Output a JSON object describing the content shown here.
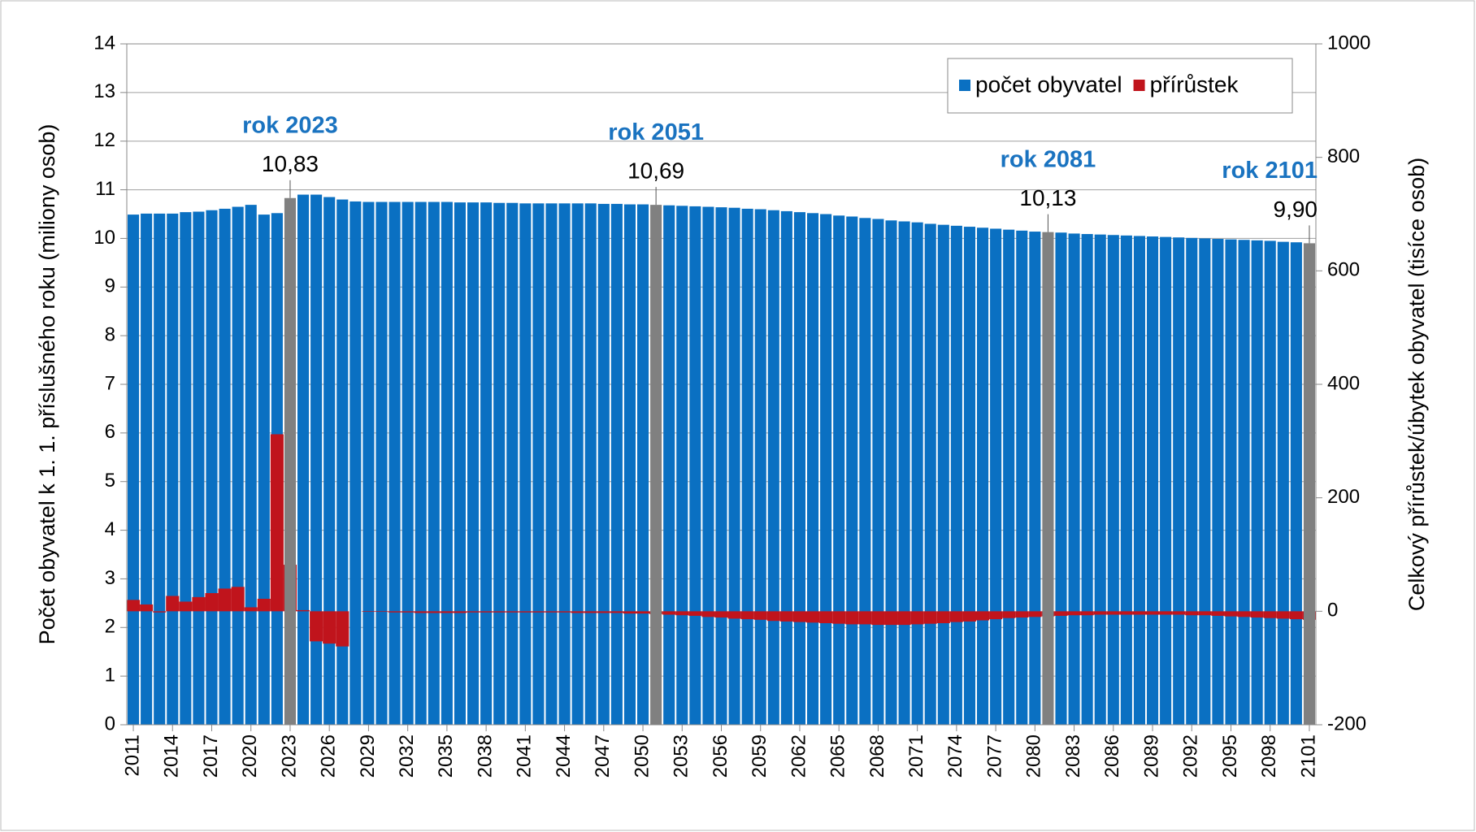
{
  "chart_data": {
    "type": "bar",
    "y_label": "Počet obyvatel k 1. 1. příslušného roku (miliony osob)",
    "y2_label": "Celkový přírůstek/úbytek obyvatel (tisíce osob)",
    "x": [
      2011,
      2012,
      2013,
      2014,
      2015,
      2016,
      2017,
      2018,
      2019,
      2020,
      2021,
      2022,
      2023,
      2024,
      2025,
      2026,
      2027,
      2028,
      2029,
      2030,
      2031,
      2032,
      2033,
      2034,
      2035,
      2036,
      2037,
      2038,
      2039,
      2040,
      2041,
      2042,
      2043,
      2044,
      2045,
      2046,
      2047,
      2048,
      2049,
      2050,
      2051,
      2052,
      2053,
      2054,
      2055,
      2056,
      2057,
      2058,
      2059,
      2060,
      2061,
      2062,
      2063,
      2064,
      2065,
      2066,
      2067,
      2068,
      2069,
      2070,
      2071,
      2072,
      2073,
      2074,
      2075,
      2076,
      2077,
      2078,
      2079,
      2080,
      2081,
      2082,
      2083,
      2084,
      2085,
      2086,
      2087,
      2088,
      2089,
      2090,
      2091,
      2092,
      2093,
      2094,
      2095,
      2096,
      2097,
      2098,
      2099,
      2100,
      2101
    ],
    "xlim": [
      2010.5,
      2101.5
    ],
    "xticks": [
      2011,
      2014,
      2017,
      2020,
      2023,
      2026,
      2029,
      2032,
      2035,
      2038,
      2041,
      2044,
      2047,
      2050,
      2053,
      2056,
      2059,
      2062,
      2065,
      2068,
      2071,
      2074,
      2077,
      2080,
      2083,
      2086,
      2089,
      2092,
      2095,
      2098,
      2101
    ],
    "ylim": [
      0,
      14
    ],
    "yticks": [
      0,
      1,
      2,
      3,
      4,
      5,
      6,
      7,
      8,
      9,
      10,
      11,
      12,
      13,
      14
    ],
    "y2lim": [
      -200,
      1000
    ],
    "y2ticks": [
      -200,
      0,
      200,
      400,
      600,
      800,
      1000
    ],
    "grid": true,
    "legend": "top-right",
    "highlight_color": "#808080",
    "series": [
      {
        "name": "počet obyvatel",
        "color": "#0a70c2",
        "values": [
          10.49,
          10.51,
          10.51,
          10.51,
          10.54,
          10.55,
          10.58,
          10.61,
          10.65,
          10.69,
          10.49,
          10.52,
          10.83,
          10.9,
          10.9,
          10.85,
          10.8,
          10.76,
          10.75,
          10.75,
          10.75,
          10.75,
          10.75,
          10.75,
          10.75,
          10.74,
          10.74,
          10.74,
          10.73,
          10.73,
          10.72,
          10.72,
          10.72,
          10.72,
          10.72,
          10.72,
          10.71,
          10.71,
          10.7,
          10.7,
          10.69,
          10.68,
          10.67,
          10.66,
          10.65,
          10.64,
          10.63,
          10.61,
          10.6,
          10.58,
          10.56,
          10.54,
          10.52,
          10.5,
          10.47,
          10.45,
          10.42,
          10.4,
          10.37,
          10.35,
          10.33,
          10.3,
          10.28,
          10.26,
          10.24,
          10.22,
          10.2,
          10.18,
          10.16,
          10.14,
          10.13,
          10.12,
          10.1,
          10.09,
          10.08,
          10.07,
          10.06,
          10.05,
          10.04,
          10.03,
          10.02,
          10.01,
          10.0,
          9.99,
          9.98,
          9.97,
          9.96,
          9.95,
          9.93,
          9.92,
          9.9
        ]
      },
      {
        "name": "přírůstek",
        "color": "#c0141c",
        "axis": "y2",
        "values": [
          20,
          12,
          -2,
          27,
          17,
          25,
          32,
          40,
          43,
          7,
          22,
          312,
          82,
          2,
          -53,
          -57,
          -62,
          0,
          -1,
          -1,
          -2,
          -2,
          -3,
          -3,
          -3,
          -3,
          -2,
          -2,
          -2,
          -2,
          -2,
          -2,
          -2,
          -2,
          -3,
          -3,
          -3,
          -3,
          -4,
          -4,
          -5,
          -6,
          -7,
          -8,
          -10,
          -11,
          -13,
          -14,
          -15,
          -17,
          -18,
          -19,
          -20,
          -21,
          -22,
          -23,
          -23,
          -24,
          -24,
          -24,
          -23,
          -22,
          -21,
          -19,
          -18,
          -16,
          -14,
          -12,
          -11,
          -10,
          -9,
          -8,
          -7,
          -7,
          -6,
          -6,
          -6,
          -6,
          -6,
          -6,
          -6,
          -7,
          -7,
          -8,
          -9,
          -10,
          -11,
          -12,
          -13,
          -14,
          -15
        ]
      }
    ],
    "annotations": [
      {
        "x": 2023,
        "title": "rok 2023",
        "label": "10,83"
      },
      {
        "x": 2051,
        "title": "rok 2051",
        "label": "10,69"
      },
      {
        "x": 2081,
        "title": "rok 2081",
        "label": "10,13"
      },
      {
        "x": 2101,
        "title": "rok 2101",
        "label": "9,90"
      }
    ]
  }
}
